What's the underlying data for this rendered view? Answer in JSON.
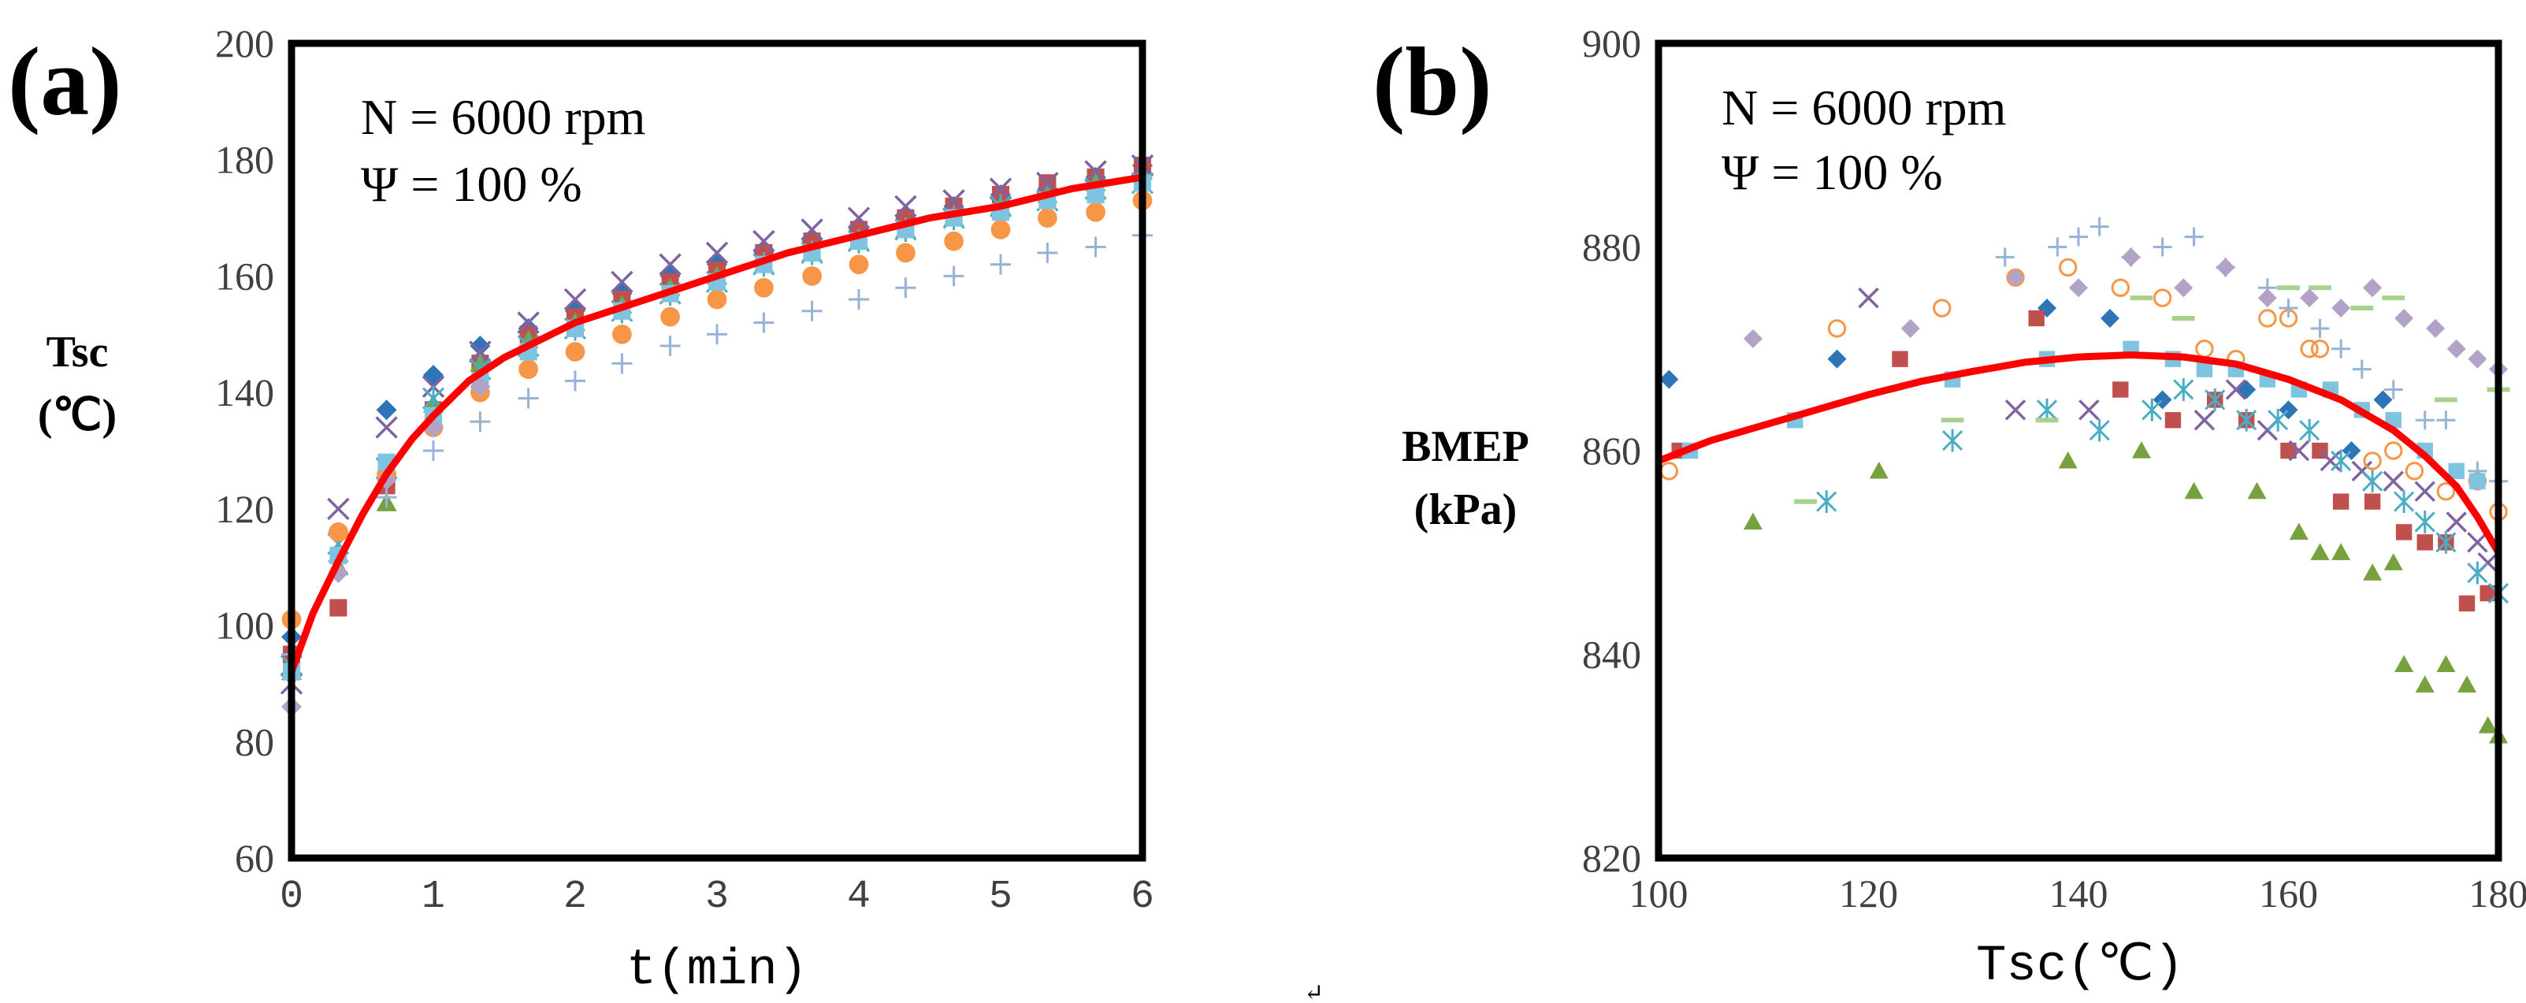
{
  "chart_data": [
    {
      "id": "a",
      "panel_label": "(a)",
      "type": "scatter",
      "xlabel": "t(min)",
      "ylabel": [
        "Tsc",
        "(℃)"
      ],
      "xlim": [
        0,
        6
      ],
      "ylim": [
        60,
        200
      ],
      "xticks": [
        "0",
        "1",
        "2",
        "3",
        "4",
        "5",
        "6"
      ],
      "yticks": [
        "60",
        "80",
        "100",
        "120",
        "140",
        "160",
        "180",
        "200"
      ],
      "annotations": [
        "N = 6000 rpm",
        "Ψ = 100 %"
      ],
      "colors": {
        "fit": "#ff0000",
        "blue": "#2e75b6",
        "red": "#c0504d",
        "green": "#77a03e",
        "purple": "#8064a2",
        "cyan": "#41acc6",
        "orange": "#f79646",
        "lightblue": "#95b3d7",
        "skyblue": "#7ec4e0",
        "lavender": "#b3a2c7",
        "teal": "#4bacc6"
      },
      "fit": {
        "x": [
          0,
          0.15,
          0.33,
          0.5,
          0.67,
          0.85,
          1.0,
          1.25,
          1.5,
          2.0,
          2.5,
          3.0,
          3.5,
          4.0,
          4.5,
          5.0,
          5.5,
          6.0
        ],
        "y": [
          92,
          102,
          111,
          119,
          126,
          132,
          136,
          142,
          146,
          152,
          156,
          160,
          164,
          167,
          170,
          172,
          175,
          177
        ]
      },
      "series": [
        {
          "name": "s1",
          "marker": "diamond",
          "color": "#2e75b6",
          "x": [
            0,
            0.33,
            0.67,
            1.0,
            1.33,
            1.67,
            2.0,
            2.33,
            2.67,
            3.0,
            3.33,
            3.67,
            4.0,
            4.33,
            4.67,
            5.0,
            5.33,
            5.67,
            6.0
          ],
          "y": [
            98,
            116,
            137,
            143,
            148,
            151,
            154,
            157,
            160,
            162,
            164,
            166,
            168,
            170,
            172,
            174,
            175,
            177,
            179
          ]
        },
        {
          "name": "s2",
          "marker": "square",
          "color": "#c0504d",
          "x": [
            0,
            0.33,
            0.67,
            1.0,
            1.33,
            1.67,
            2.0,
            2.33,
            2.67,
            3.0,
            3.33,
            3.67,
            4.0,
            4.33,
            4.67,
            5.0,
            5.33,
            5.67,
            6.0
          ],
          "y": [
            95,
            103,
            124,
            137,
            145,
            150,
            153,
            156,
            159,
            161,
            164,
            166,
            168,
            170,
            172,
            174,
            176,
            177,
            179
          ]
        },
        {
          "name": "s3",
          "marker": "triangle",
          "color": "#77a03e",
          "x": [
            0,
            0.33,
            0.67,
            1.0,
            1.33,
            1.67,
            2.0,
            2.33,
            2.67,
            3.0,
            3.33,
            3.67,
            4.0,
            4.33,
            4.67,
            5.0,
            5.33,
            5.67,
            6.0
          ],
          "y": [
            92,
            110,
            121,
            138,
            145,
            149,
            152,
            155,
            158,
            160,
            162,
            164,
            166,
            168,
            170,
            172,
            174,
            176,
            178
          ]
        },
        {
          "name": "s4",
          "marker": "x",
          "color": "#8064a2",
          "x": [
            0,
            0.33,
            0.67,
            1.0,
            1.33,
            1.67,
            2.0,
            2.33,
            2.67,
            3.0,
            3.33,
            3.67,
            4.0,
            4.33,
            4.67,
            5.0,
            5.33,
            5.67,
            6.0
          ],
          "y": [
            90,
            120,
            134,
            141,
            147,
            152,
            156,
            159,
            162,
            164,
            166,
            168,
            170,
            172,
            173,
            175,
            176,
            178,
            179
          ]
        },
        {
          "name": "s5",
          "marker": "star",
          "color": "#4bacc6",
          "x": [
            0,
            0.33,
            0.67,
            1.0,
            1.33,
            1.67,
            2.0,
            2.33,
            2.67,
            3.0,
            3.33,
            3.67,
            4.0,
            4.33,
            4.67,
            5.0,
            5.33,
            5.67,
            6.0
          ],
          "y": [
            93,
            114,
            127,
            139,
            144,
            148,
            151,
            154,
            157,
            159,
            162,
            164,
            166,
            168,
            170,
            172,
            173,
            175,
            176
          ]
        },
        {
          "name": "s6",
          "marker": "circle",
          "color": "#f79646",
          "x": [
            0,
            0.33,
            0.67,
            1.0,
            1.33,
            1.67,
            2.0,
            2.33,
            2.67,
            3.0,
            3.33,
            3.67,
            4.0,
            4.33,
            4.67,
            5.0,
            5.33,
            5.67,
            6.0
          ],
          "y": [
            101,
            116,
            126,
            134,
            140,
            144,
            147,
            150,
            153,
            156,
            158,
            160,
            162,
            164,
            166,
            168,
            170,
            171,
            173
          ]
        },
        {
          "name": "s7",
          "marker": "plus",
          "color": "#95b3d7",
          "x": [
            0,
            0.33,
            0.67,
            1.0,
            1.33,
            1.67,
            2.0,
            2.33,
            2.67,
            3.0,
            3.33,
            3.67,
            4.0,
            4.33,
            4.67,
            5.0,
            5.33,
            5.67,
            6.0
          ],
          "y": [
            95,
            111,
            122,
            130,
            135,
            139,
            142,
            145,
            148,
            150,
            152,
            154,
            156,
            158,
            160,
            162,
            164,
            165,
            167
          ]
        },
        {
          "name": "s8",
          "marker": "square",
          "color": "#7ec4e0",
          "x": [
            0,
            0.33,
            0.67,
            1.0,
            1.33,
            1.67,
            2.0,
            2.33,
            2.67,
            3.0,
            3.33,
            3.67,
            4.0,
            4.33,
            4.67,
            5.0,
            5.33,
            5.67,
            6.0
          ],
          "y": [
            92,
            112,
            128,
            136,
            142,
            147,
            151,
            154,
            157,
            159,
            162,
            164,
            166,
            168,
            170,
            171,
            173,
            174,
            176
          ]
        },
        {
          "name": "s9",
          "marker": "diamond",
          "color": "#b3a2c7",
          "x": [
            0,
            0.33,
            0.67,
            1.0,
            1.33
          ],
          "y": [
            86,
            109,
            125,
            134,
            141
          ]
        }
      ]
    },
    {
      "id": "b",
      "panel_label": "(b)",
      "type": "scatter",
      "xlabel": "Tsc(℃)",
      "ylabel": [
        "BMEP",
        "(kPa)"
      ],
      "xlim": [
        100,
        180
      ],
      "ylim": [
        820,
        900
      ],
      "xticks": [
        "100",
        "120",
        "140",
        "160",
        "180"
      ],
      "yticks": [
        "820",
        "840",
        "860",
        "880",
        "900"
      ],
      "annotations": [
        "N = 6000 rpm",
        "Ψ = 100 %"
      ],
      "fit": {
        "x": [
          100,
          105,
          110,
          115,
          120,
          125,
          130,
          135,
          140,
          145,
          150,
          155,
          160,
          165,
          170,
          173,
          176,
          178,
          180
        ],
        "y": [
          859,
          861,
          862.5,
          864,
          865.5,
          866.8,
          867.8,
          868.7,
          869.2,
          869.4,
          869.2,
          868.5,
          867,
          865,
          862,
          859.5,
          856.5,
          853.5,
          850
        ]
      },
      "series": [
        {
          "name": "s1",
          "marker": "diamond",
          "color": "#2e75b6",
          "x": [
            101,
            117,
            137,
            143,
            148,
            156,
            160,
            166,
            169
          ],
          "y": [
            867,
            869,
            874,
            873,
            865,
            866,
            864,
            860,
            865
          ]
        },
        {
          "name": "s2",
          "marker": "square",
          "color": "#c0504d",
          "x": [
            102,
            123,
            136,
            144,
            149,
            153,
            156,
            160,
            163,
            165,
            168,
            171,
            173,
            175,
            177,
            179
          ],
          "y": [
            860,
            869,
            873,
            866,
            863,
            865,
            863,
            860,
            860,
            855,
            855,
            852,
            851,
            851,
            845,
            846
          ]
        },
        {
          "name": "s3",
          "marker": "triangle",
          "color": "#77a03e",
          "x": [
            109,
            121,
            139,
            146,
            151,
            157,
            161,
            163,
            165,
            168,
            170,
            171,
            173,
            175,
            177,
            179,
            180
          ],
          "y": [
            853,
            858,
            859,
            860,
            856,
            856,
            852,
            850,
            850,
            848,
            849,
            839,
            837,
            839,
            837,
            833,
            832
          ]
        },
        {
          "name": "s4",
          "marker": "x",
          "color": "#8064a2",
          "x": [
            120,
            134,
            141,
            152,
            155,
            158,
            161,
            164,
            167,
            170,
            173,
            176,
            178,
            179
          ],
          "y": [
            875,
            864,
            864,
            863,
            866,
            862,
            860,
            859,
            858,
            857,
            856,
            853,
            851,
            849
          ]
        },
        {
          "name": "s5",
          "marker": "star",
          "color": "#4bacc6",
          "x": [
            116,
            128,
            137,
            142,
            147,
            150,
            153,
            156,
            159,
            162,
            165,
            168,
            171,
            173,
            175,
            178,
            180
          ],
          "y": [
            855,
            861,
            864,
            862,
            864,
            866,
            865,
            863,
            863,
            862,
            859,
            857,
            855,
            853,
            851,
            848,
            846
          ]
        },
        {
          "name": "s6",
          "marker": "circle",
          "color": "#f79646",
          "x": [
            101,
            117,
            127,
            134,
            139,
            144,
            148,
            152,
            155,
            158,
            160,
            162,
            163,
            168,
            170,
            172,
            175,
            178,
            180
          ],
          "y": [
            858,
            872,
            874,
            877,
            878,
            876,
            875,
            870,
            869,
            873,
            873,
            870,
            870,
            859,
            860,
            858,
            856,
            857,
            854
          ]
        },
        {
          "name": "s7",
          "marker": "plus",
          "color": "#95b3d7",
          "x": [
            133,
            138,
            140,
            142,
            145,
            148,
            151,
            154,
            158,
            160,
            163,
            165,
            167,
            170,
            173,
            175,
            178,
            180
          ],
          "y": [
            879,
            880,
            881,
            882,
            879,
            880,
            881,
            878,
            876,
            874,
            872,
            870,
            868,
            866,
            863,
            863,
            858,
            857
          ]
        },
        {
          "name": "s8",
          "marker": "dash",
          "color": "#a9d18e",
          "x": [
            114,
            128,
            137,
            146,
            150,
            160,
            163,
            167,
            170,
            175,
            180
          ],
          "y": [
            855,
            863,
            863,
            875,
            873,
            876,
            876,
            874,
            875,
            865,
            866
          ]
        },
        {
          "name": "s9",
          "marker": "diamond",
          "color": "#b3a2c7",
          "x": [
            109,
            124,
            134,
            140,
            145,
            150,
            154,
            158,
            162,
            165,
            168,
            171,
            174,
            176,
            178,
            180
          ],
          "y": [
            871,
            872,
            877,
            876,
            879,
            876,
            878,
            875,
            875,
            874,
            876,
            873,
            872,
            870,
            869,
            868
          ]
        },
        {
          "name": "s10",
          "marker": "square",
          "color": "#7ec4e0",
          "x": [
            103,
            113,
            128,
            137,
            145,
            149,
            152,
            155,
            158,
            161,
            164,
            167,
            170,
            173,
            176,
            178
          ],
          "y": [
            860,
            863,
            867,
            869,
            870,
            869,
            868,
            868,
            867,
            866,
            866,
            864,
            863,
            860,
            858,
            857
          ]
        }
      ]
    }
  ],
  "footer_mark": "↵"
}
